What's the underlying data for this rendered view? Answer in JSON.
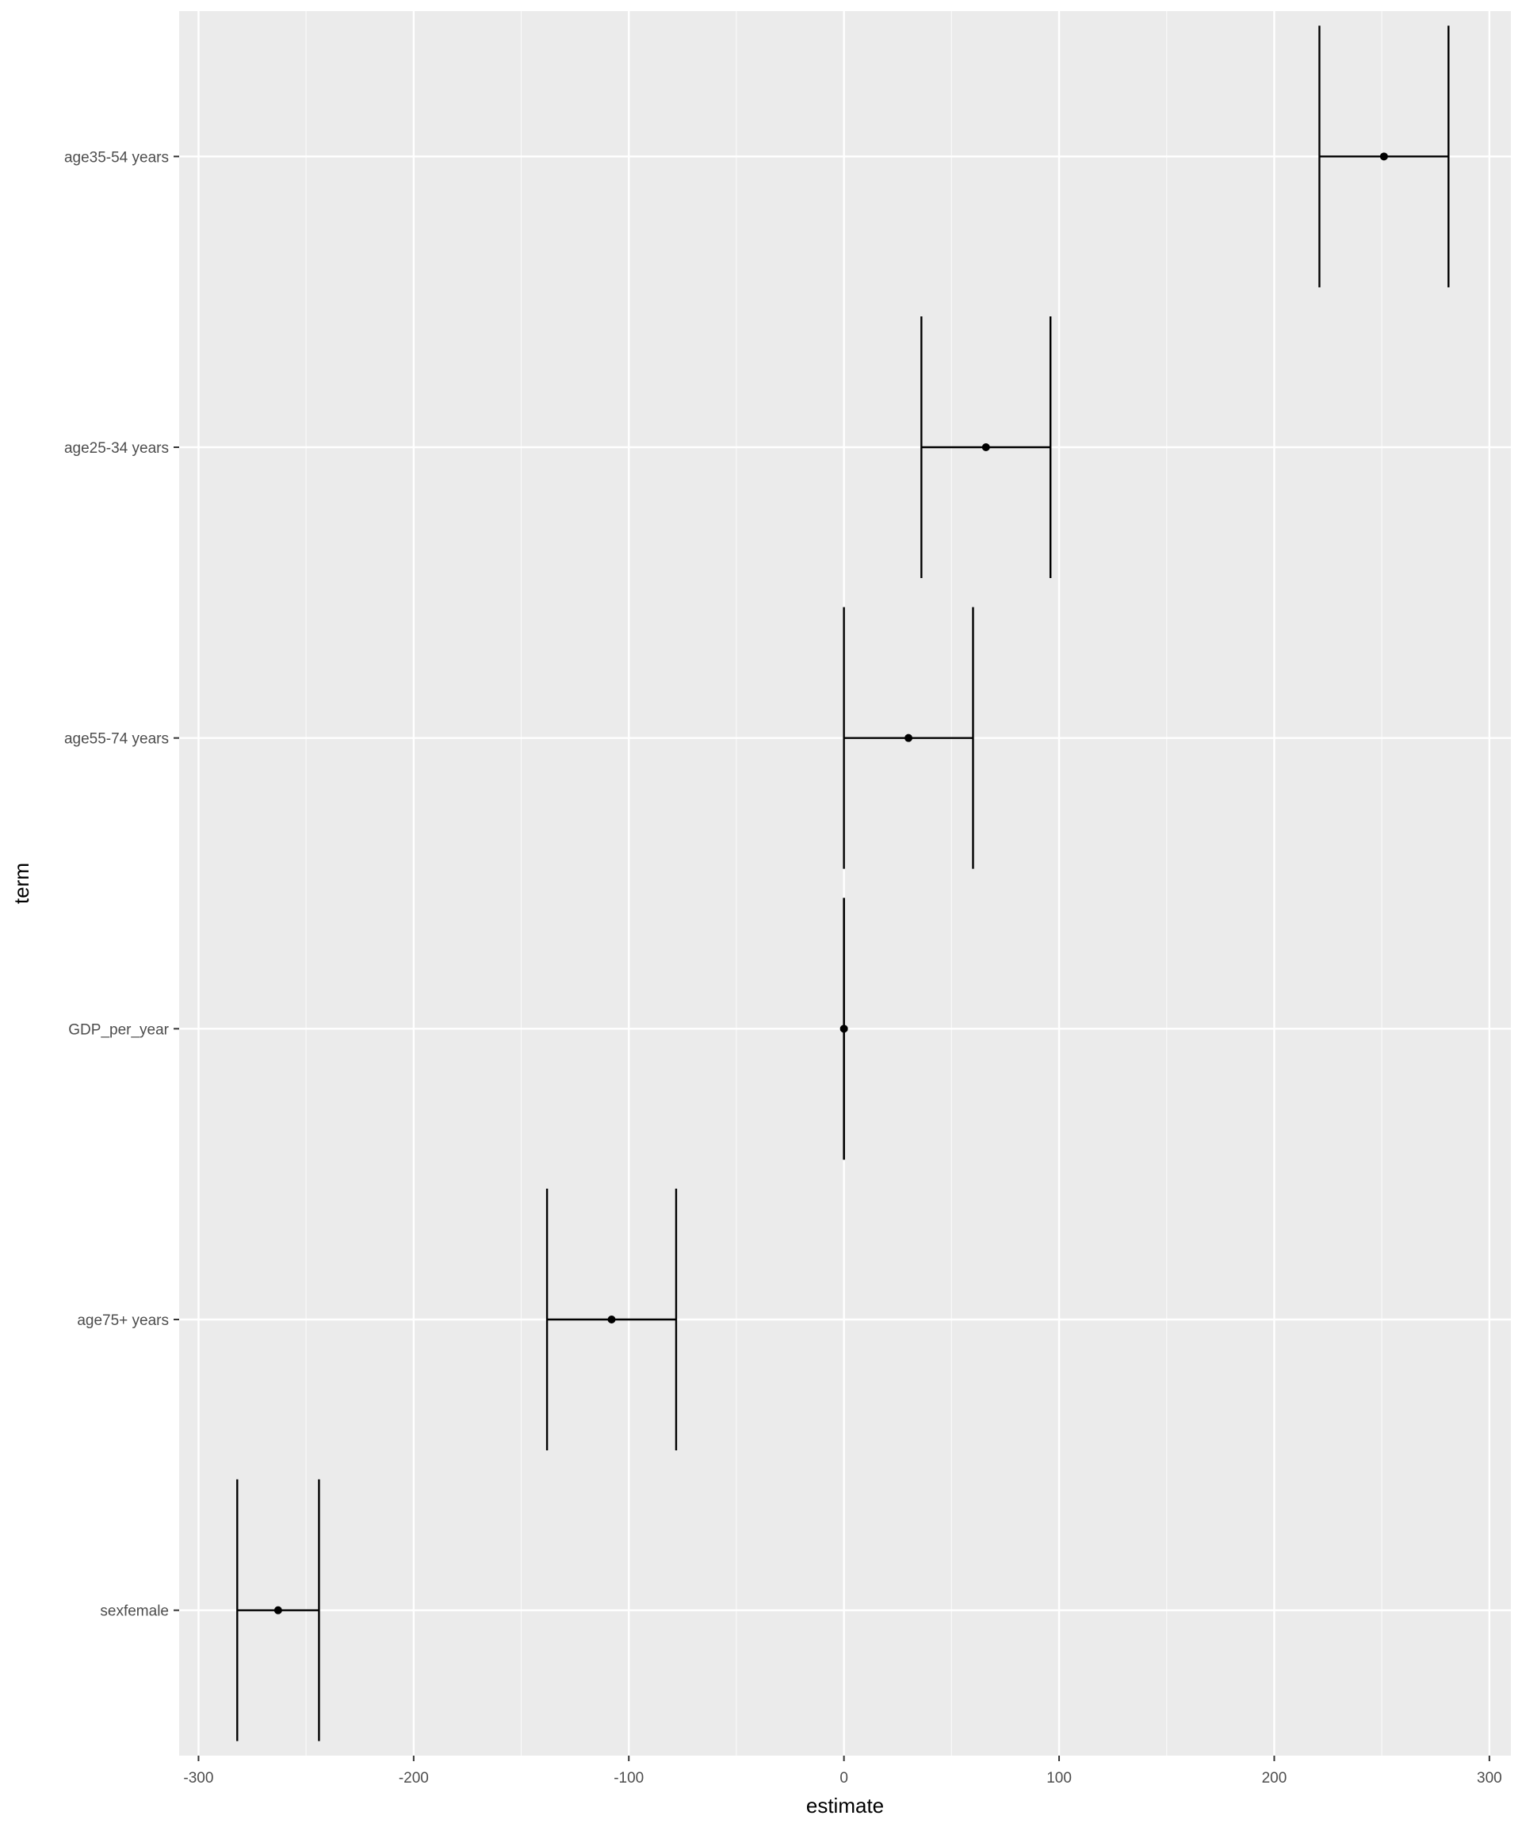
{
  "chart_data": {
    "type": "errorbar",
    "xlabel": "estimate",
    "ylabel": "term",
    "xlim": [
      -309,
      310
    ],
    "x_ticks": [
      -300,
      -200,
      -100,
      0,
      100,
      200,
      300
    ],
    "x_tick_labels": [
      "-300",
      "-200",
      "-100",
      "0",
      "100",
      "200",
      "300"
    ],
    "grid": true,
    "categories": [
      "age35-54 years",
      "age25-34 years",
      "age55-74 years",
      "GDP_per_year",
      "age75+ years",
      "sexfemale"
    ],
    "estimates": [
      251,
      66,
      30,
      0,
      -108,
      -263
    ],
    "lower": [
      221,
      36,
      0,
      0,
      -138,
      -282
    ],
    "upper": [
      281,
      96,
      60,
      0,
      -78,
      -244
    ],
    "colors": {
      "panel": "#ebebeb",
      "grid": "#ffffff",
      "marks": "#000000",
      "tick_text": "#4d4d4d"
    }
  }
}
